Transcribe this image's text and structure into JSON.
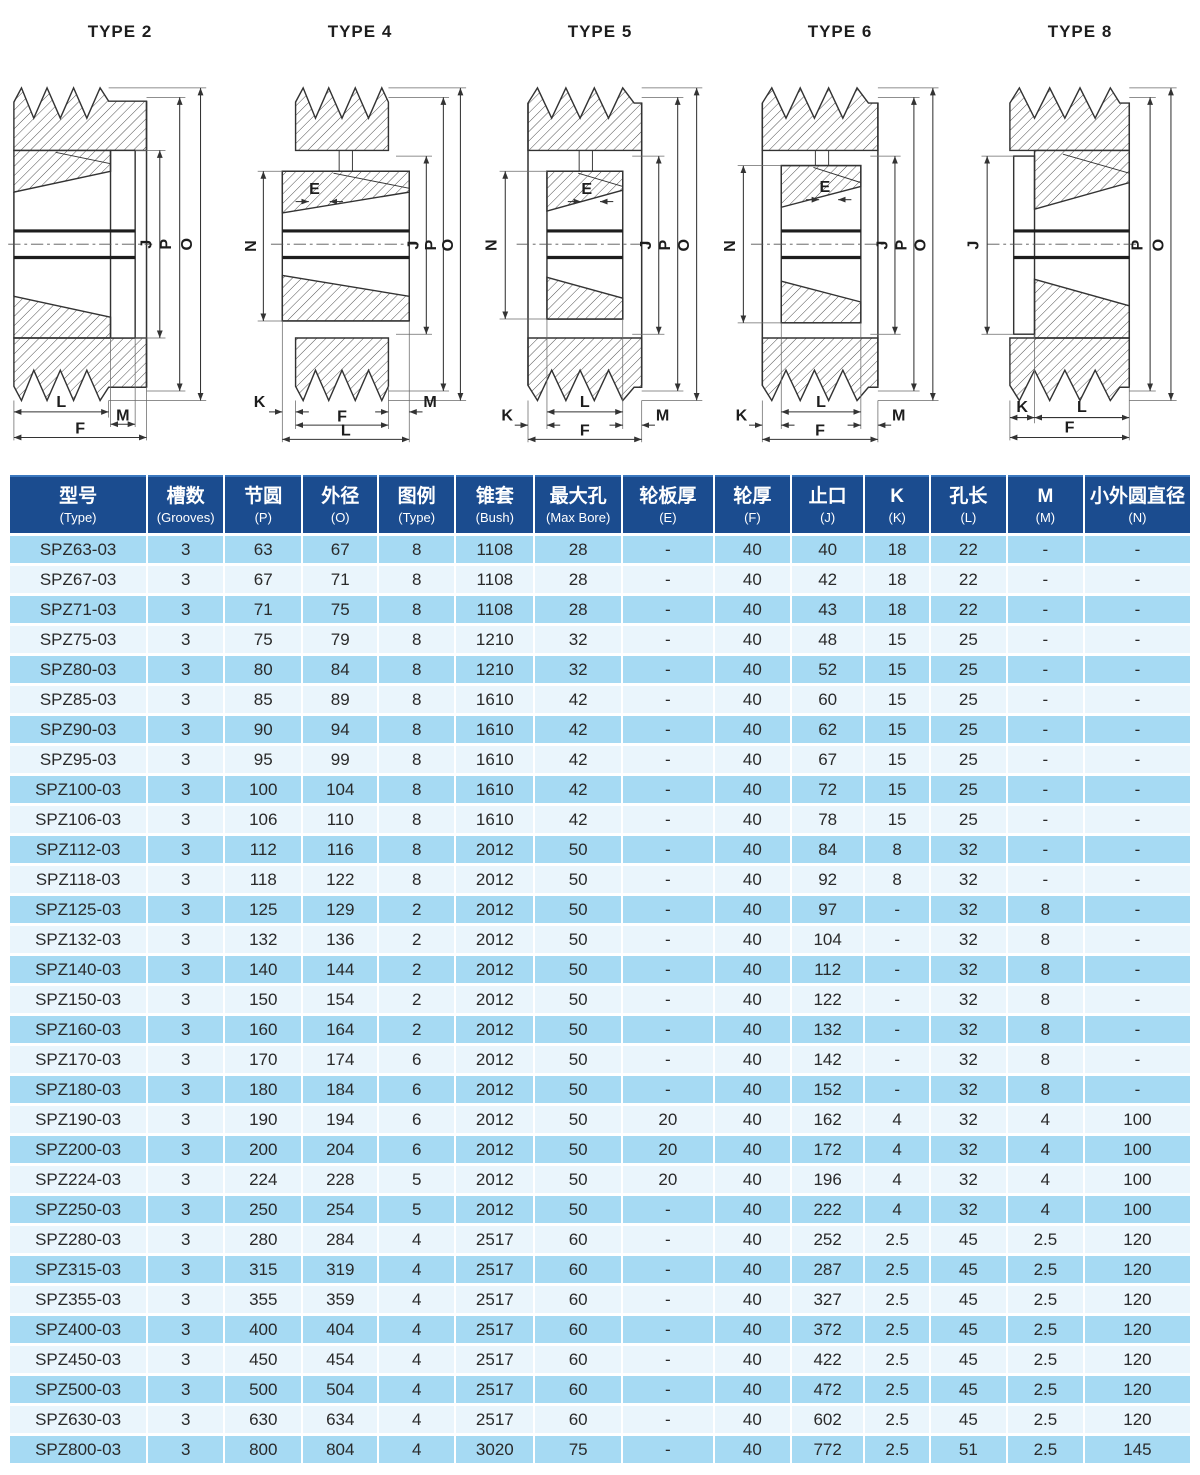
{
  "colors": {
    "header_bg": "#1b4c8f",
    "row_odd": "#a6daf3",
    "row_even": "#eaf5fc",
    "diagram_line": "#333333"
  },
  "diagrams": [
    {
      "title": "TYPE 2",
      "labels": [
        "J",
        "P",
        "O",
        "L",
        "M",
        "F"
      ]
    },
    {
      "title": "TYPE 4",
      "labels": [
        "E",
        "N",
        "J",
        "P",
        "O",
        "K",
        "M",
        "F",
        "L"
      ]
    },
    {
      "title": "TYPE 5",
      "labels": [
        "E",
        "N",
        "J",
        "P",
        "O",
        "L",
        "K",
        "M",
        "F"
      ]
    },
    {
      "title": "TYPE 6",
      "labels": [
        "E",
        "N",
        "J",
        "P",
        "O",
        "L",
        "K",
        "M",
        "F"
      ]
    },
    {
      "title": "TYPE 8",
      "labels": [
        "J",
        "P",
        "O",
        "K",
        "L",
        "F"
      ]
    }
  ],
  "table": {
    "columns": [
      {
        "zh": "型号",
        "en": "(Type)"
      },
      {
        "zh": "槽数",
        "en": "(Grooves)"
      },
      {
        "zh": "节圆",
        "en": "(P)"
      },
      {
        "zh": "外径",
        "en": "(O)"
      },
      {
        "zh": "图例",
        "en": "(Type)"
      },
      {
        "zh": "锥套",
        "en": "(Bush)"
      },
      {
        "zh": "最大孔",
        "en": "(Max Bore)"
      },
      {
        "zh": "轮板厚",
        "en": "(E)"
      },
      {
        "zh": "轮厚",
        "en": "(F)"
      },
      {
        "zh": "止口",
        "en": "(J)"
      },
      {
        "zh": "K",
        "en": "(K)"
      },
      {
        "zh": "孔长",
        "en": "(L)"
      },
      {
        "zh": "M",
        "en": "(M)"
      },
      {
        "zh": "小外圆直径",
        "en": "(N)"
      }
    ],
    "rows": [
      [
        "SPZ63-03",
        "3",
        "63",
        "67",
        "8",
        "1108",
        "28",
        "-",
        "40",
        "40",
        "18",
        "22",
        "-",
        "-"
      ],
      [
        "SPZ67-03",
        "3",
        "67",
        "71",
        "8",
        "1108",
        "28",
        "-",
        "40",
        "42",
        "18",
        "22",
        "-",
        "-"
      ],
      [
        "SPZ71-03",
        "3",
        "71",
        "75",
        "8",
        "1108",
        "28",
        "-",
        "40",
        "43",
        "18",
        "22",
        "-",
        "-"
      ],
      [
        "SPZ75-03",
        "3",
        "75",
        "79",
        "8",
        "1210",
        "32",
        "-",
        "40",
        "48",
        "15",
        "25",
        "-",
        "-"
      ],
      [
        "SPZ80-03",
        "3",
        "80",
        "84",
        "8",
        "1210",
        "32",
        "-",
        "40",
        "52",
        "15",
        "25",
        "-",
        "-"
      ],
      [
        "SPZ85-03",
        "3",
        "85",
        "89",
        "8",
        "1610",
        "42",
        "-",
        "40",
        "60",
        "15",
        "25",
        "-",
        "-"
      ],
      [
        "SPZ90-03",
        "3",
        "90",
        "94",
        "8",
        "1610",
        "42",
        "-",
        "40",
        "62",
        "15",
        "25",
        "-",
        "-"
      ],
      [
        "SPZ95-03",
        "3",
        "95",
        "99",
        "8",
        "1610",
        "42",
        "-",
        "40",
        "67",
        "15",
        "25",
        "-",
        "-"
      ],
      [
        "SPZ100-03",
        "3",
        "100",
        "104",
        "8",
        "1610",
        "42",
        "-",
        "40",
        "72",
        "15",
        "25",
        "-",
        "-"
      ],
      [
        "SPZ106-03",
        "3",
        "106",
        "110",
        "8",
        "1610",
        "42",
        "-",
        "40",
        "78",
        "15",
        "25",
        "-",
        "-"
      ],
      [
        "SPZ112-03",
        "3",
        "112",
        "116",
        "8",
        "2012",
        "50",
        "-",
        "40",
        "84",
        "8",
        "32",
        "-",
        "-"
      ],
      [
        "SPZ118-03",
        "3",
        "118",
        "122",
        "8",
        "2012",
        "50",
        "-",
        "40",
        "92",
        "8",
        "32",
        "-",
        "-"
      ],
      [
        "SPZ125-03",
        "3",
        "125",
        "129",
        "2",
        "2012",
        "50",
        "-",
        "40",
        "97",
        "-",
        "32",
        "8",
        "-"
      ],
      [
        "SPZ132-03",
        "3",
        "132",
        "136",
        "2",
        "2012",
        "50",
        "-",
        "40",
        "104",
        "-",
        "32",
        "8",
        "-"
      ],
      [
        "SPZ140-03",
        "3",
        "140",
        "144",
        "2",
        "2012",
        "50",
        "-",
        "40",
        "112",
        "-",
        "32",
        "8",
        "-"
      ],
      [
        "SPZ150-03",
        "3",
        "150",
        "154",
        "2",
        "2012",
        "50",
        "-",
        "40",
        "122",
        "-",
        "32",
        "8",
        "-"
      ],
      [
        "SPZ160-03",
        "3",
        "160",
        "164",
        "2",
        "2012",
        "50",
        "-",
        "40",
        "132",
        "-",
        "32",
        "8",
        "-"
      ],
      [
        "SPZ170-03",
        "3",
        "170",
        "174",
        "6",
        "2012",
        "50",
        "-",
        "40",
        "142",
        "-",
        "32",
        "8",
        "-"
      ],
      [
        "SPZ180-03",
        "3",
        "180",
        "184",
        "6",
        "2012",
        "50",
        "-",
        "40",
        "152",
        "-",
        "32",
        "8",
        "-"
      ],
      [
        "SPZ190-03",
        "3",
        "190",
        "194",
        "6",
        "2012",
        "50",
        "20",
        "40",
        "162",
        "4",
        "32",
        "4",
        "100"
      ],
      [
        "SPZ200-03",
        "3",
        "200",
        "204",
        "6",
        "2012",
        "50",
        "20",
        "40",
        "172",
        "4",
        "32",
        "4",
        "100"
      ],
      [
        "SPZ224-03",
        "3",
        "224",
        "228",
        "5",
        "2012",
        "50",
        "20",
        "40",
        "196",
        "4",
        "32",
        "4",
        "100"
      ],
      [
        "SPZ250-03",
        "3",
        "250",
        "254",
        "5",
        "2012",
        "50",
        "-",
        "40",
        "222",
        "4",
        "32",
        "4",
        "100"
      ],
      [
        "SPZ280-03",
        "3",
        "280",
        "284",
        "4",
        "2517",
        "60",
        "-",
        "40",
        "252",
        "2.5",
        "45",
        "2.5",
        "120"
      ],
      [
        "SPZ315-03",
        "3",
        "315",
        "319",
        "4",
        "2517",
        "60",
        "-",
        "40",
        "287",
        "2.5",
        "45",
        "2.5",
        "120"
      ],
      [
        "SPZ355-03",
        "3",
        "355",
        "359",
        "4",
        "2517",
        "60",
        "-",
        "40",
        "327",
        "2.5",
        "45",
        "2.5",
        "120"
      ],
      [
        "SPZ400-03",
        "3",
        "400",
        "404",
        "4",
        "2517",
        "60",
        "-",
        "40",
        "372",
        "2.5",
        "45",
        "2.5",
        "120"
      ],
      [
        "SPZ450-03",
        "3",
        "450",
        "454",
        "4",
        "2517",
        "60",
        "-",
        "40",
        "422",
        "2.5",
        "45",
        "2.5",
        "120"
      ],
      [
        "SPZ500-03",
        "3",
        "500",
        "504",
        "4",
        "2517",
        "60",
        "-",
        "40",
        "472",
        "2.5",
        "45",
        "2.5",
        "120"
      ],
      [
        "SPZ630-03",
        "3",
        "630",
        "634",
        "4",
        "2517",
        "60",
        "-",
        "40",
        "602",
        "2.5",
        "45",
        "2.5",
        "120"
      ],
      [
        "SPZ800-03",
        "3",
        "800",
        "804",
        "4",
        "3020",
        "75",
        "-",
        "40",
        "772",
        "2.5",
        "51",
        "2.5",
        "145"
      ]
    ]
  }
}
